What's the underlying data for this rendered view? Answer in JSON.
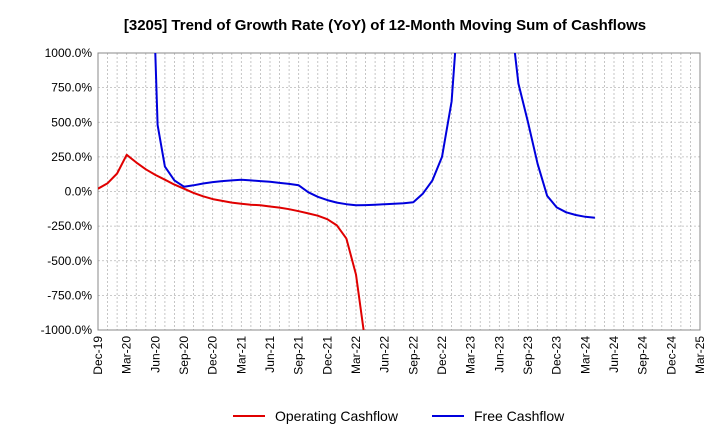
{
  "chart_data": {
    "type": "line",
    "title": "[3205]  Trend of Growth Rate (YoY) of 12-Month Moving Sum of Cashflows",
    "xlabel": "",
    "ylabel": "",
    "ylim": [
      -1000,
      1000
    ],
    "yticks": [
      1000,
      750,
      500,
      250,
      0,
      -250,
      -500,
      -750,
      -1000
    ],
    "ytick_labels": [
      "1000.0%",
      "750.0%",
      "500.0%",
      "250.0%",
      "0.0%",
      "-250.0%",
      "-500.0%",
      "-750.0%",
      "-1000.0%"
    ],
    "x_start": "2019-12",
    "x_end": "2025-03",
    "xtick_labels": [
      "Dec-19",
      "Mar-20",
      "Jun-20",
      "Sep-20",
      "Dec-20",
      "Mar-21",
      "Jun-21",
      "Sep-21",
      "Dec-21",
      "Mar-22",
      "Jun-22",
      "Sep-22",
      "Dec-22",
      "Mar-23",
      "Jun-23",
      "Sep-23",
      "Dec-23",
      "Mar-24",
      "Jun-24",
      "Sep-24",
      "Dec-24",
      "Mar-25"
    ],
    "grid": true,
    "legend_position": "bottom-center",
    "series": [
      {
        "name": "Operating Cashflow",
        "color": "#e00000",
        "points": [
          [
            "2019-12",
            20
          ],
          [
            "2020-01",
            60
          ],
          [
            "2020-02",
            130
          ],
          [
            "2020-03",
            265
          ],
          [
            "2020-04",
            210
          ],
          [
            "2020-05",
            160
          ],
          [
            "2020-06",
            120
          ],
          [
            "2020-07",
            85
          ],
          [
            "2020-08",
            50
          ],
          [
            "2020-09",
            20
          ],
          [
            "2020-10",
            -10
          ],
          [
            "2020-11",
            -35
          ],
          [
            "2020-12",
            -55
          ],
          [
            "2021-01",
            -68
          ],
          [
            "2021-02",
            -80
          ],
          [
            "2021-03",
            -88
          ],
          [
            "2021-04",
            -95
          ],
          [
            "2021-05",
            -100
          ],
          [
            "2021-06",
            -108
          ],
          [
            "2021-07",
            -116
          ],
          [
            "2021-08",
            -128
          ],
          [
            "2021-09",
            -142
          ],
          [
            "2021-10",
            -158
          ],
          [
            "2021-11",
            -175
          ],
          [
            "2021-12",
            -200
          ],
          [
            "2022-01",
            -245
          ],
          [
            "2022-02",
            -340
          ],
          [
            "2022-03",
            -600
          ],
          [
            "2022-03-25",
            -1000
          ]
        ]
      },
      {
        "name": "Free Cashflow",
        "color": "#0000dd",
        "points": [
          [
            "2020-06",
            1000
          ],
          [
            "2020-06-08",
            480
          ],
          [
            "2020-07",
            180
          ],
          [
            "2020-08",
            80
          ],
          [
            "2020-09",
            35
          ],
          [
            "2020-10",
            45
          ],
          [
            "2020-11",
            58
          ],
          [
            "2020-12",
            68
          ],
          [
            "2021-01",
            75
          ],
          [
            "2021-02",
            80
          ],
          [
            "2021-03",
            85
          ],
          [
            "2021-04",
            80
          ],
          [
            "2021-05",
            75
          ],
          [
            "2021-06",
            70
          ],
          [
            "2021-07",
            62
          ],
          [
            "2021-08",
            55
          ],
          [
            "2021-09",
            45
          ],
          [
            "2021-10",
            -5
          ],
          [
            "2021-11",
            -38
          ],
          [
            "2021-12",
            -62
          ],
          [
            "2022-01",
            -80
          ],
          [
            "2022-02",
            -92
          ],
          [
            "2022-03",
            -100
          ],
          [
            "2022-04",
            -98
          ],
          [
            "2022-05",
            -95
          ],
          [
            "2022-06",
            -92
          ],
          [
            "2022-07",
            -88
          ],
          [
            "2022-08",
            -85
          ],
          [
            "2022-09",
            -78
          ],
          [
            "2022-10",
            -15
          ],
          [
            "2022-11",
            80
          ],
          [
            "2022-12",
            250
          ],
          [
            "2023-01",
            650
          ],
          [
            "2023-01-12",
            1000
          ]
        ]
      },
      {
        "name": "Free Cashflow",
        "color": "#0000dd",
        "points": [
          [
            "2023-07-20",
            1000
          ],
          [
            "2023-08",
            780
          ],
          [
            "2023-09",
            500
          ],
          [
            "2023-10",
            200
          ],
          [
            "2023-11",
            -30
          ],
          [
            "2023-12",
            -115
          ],
          [
            "2024-01",
            -150
          ],
          [
            "2024-02",
            -170
          ],
          [
            "2024-03",
            -183
          ],
          [
            "2024-04",
            -190
          ]
        ]
      }
    ],
    "legend": [
      {
        "name": "Operating Cashflow",
        "color": "#e00000"
      },
      {
        "name": "Free Cashflow",
        "color": "#0000dd"
      }
    ]
  }
}
